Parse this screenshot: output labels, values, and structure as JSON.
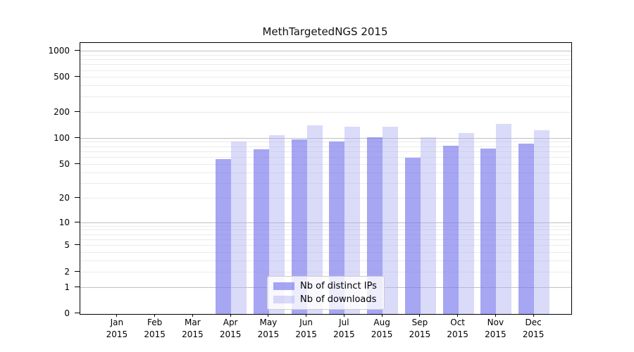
{
  "chart_data": {
    "type": "bar",
    "title": "MethTargetedNGS 2015",
    "xlabel": "",
    "ylabel": "",
    "yscale": "log1p",
    "ylim": [
      0,
      1250
    ],
    "yticks": [
      0,
      1,
      2,
      5,
      10,
      20,
      50,
      100,
      200,
      500,
      1000
    ],
    "grid": true,
    "year": "2015",
    "categories": [
      "Jan",
      "Feb",
      "Mar",
      "Apr",
      "May",
      "Jun",
      "Jul",
      "Aug",
      "Sep",
      "Oct",
      "Nov",
      "Dec"
    ],
    "series": [
      {
        "name": "Nb of distinct IPs",
        "color": "rgba(118,118,237,0.65)",
        "color_hex": "#a6a6f3",
        "values": [
          0,
          0,
          0,
          58,
          76,
          97,
          92,
          103,
          60,
          83,
          77,
          87
        ]
      },
      {
        "name": "Nb of downloads",
        "color": "rgba(173,173,242,0.45)",
        "color_hex": "#dadaf9",
        "values": [
          0,
          0,
          0,
          93,
          109,
          143,
          136,
          138,
          103,
          115,
          148,
          126
        ]
      }
    ],
    "legend_position": "lower center",
    "colors": {
      "grid_major": "#c0c0c0",
      "grid_minor": "#ebebeb",
      "axis": "#000000",
      "text": "#111111",
      "background": "#ffffff"
    }
  }
}
